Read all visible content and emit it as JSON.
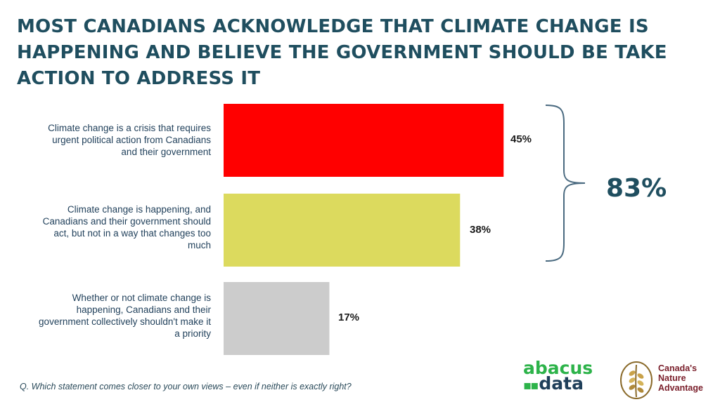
{
  "title": "MOST CANADIANS ACKNOWLEDGE THAT CLIMATE CHANGE IS HAPPENING AND BELIEVE THE GOVERNMENT SHOULD BE TAKE ACTION TO ADDRESS IT",
  "chart_data": {
    "type": "bar",
    "orientation": "horizontal",
    "categories": [
      "Climate change is a crisis that requires urgent political action from Canadians and their government",
      "Climate change is happening, and Canadians and their government should act, but not in a way that changes too much",
      "Whether or not climate change is happening, Canadians and their government collectively shouldn't make it a priority"
    ],
    "values": [
      45,
      38,
      17
    ],
    "value_labels": [
      "45%",
      "38%",
      "17%"
    ],
    "colors": [
      "#ff0000",
      "#dcda5e",
      "#cccccc"
    ],
    "xlim": [
      0,
      100
    ],
    "grid": false,
    "bracket_total_label": "83%",
    "title": "MOST CANADIANS ACKNOWLEDGE THAT CLIMATE CHANGE IS HAPPENING AND BELIEVE THE GOVERNMENT SHOULD BE TAKE ACTION TO ADDRESS IT"
  },
  "footnote": "Q. Which statement comes closer to your own views – even if neither is exactly right?",
  "logos": {
    "abacus_line1": "abacus",
    "abacus_line2": "data",
    "cna_line1": "Canada's",
    "cna_line2": "Nature",
    "cna_line3": "Advantage"
  },
  "colors": {
    "title": "#1f4e5f",
    "bracket": "#4a6a80"
  }
}
